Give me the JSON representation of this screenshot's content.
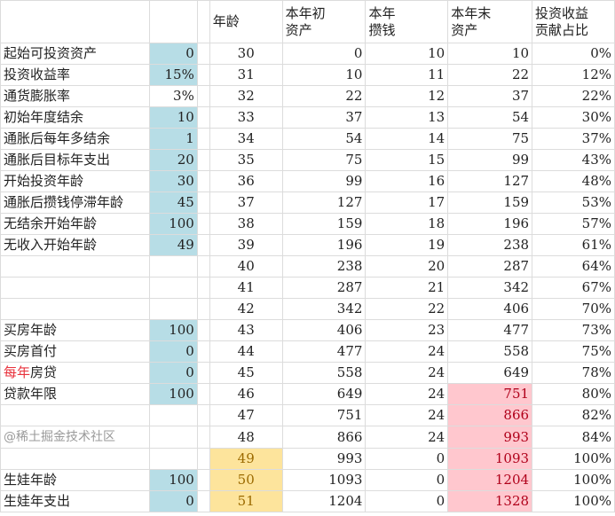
{
  "headers": {
    "age": "年龄",
    "start_assets": [
      "本年初",
      "资产"
    ],
    "savings": [
      "本年",
      "攒钱"
    ],
    "end_assets": [
      "本年末",
      "资产"
    ],
    "return_ratio": [
      "投资收益",
      "贡献占比"
    ]
  },
  "params": [
    {
      "label": "起始可投资资产",
      "value": "0",
      "input": true
    },
    {
      "label": "投资收益率",
      "value": "15%",
      "input": true
    },
    {
      "label": "通货膨胀率",
      "value": "3%",
      "input": false
    },
    {
      "label": "初始年度结余",
      "value": "10",
      "input": true
    },
    {
      "label": "通胀后每年多结余",
      "value": "1",
      "input": true
    },
    {
      "label": "通胀后目标年支出",
      "value": "20",
      "input": true
    },
    {
      "label": "开始投资年龄",
      "value": "30",
      "input": true
    },
    {
      "label": "通胀后攒钱停滞年龄",
      "value": "45",
      "input": true
    },
    {
      "label": "无结余开始年龄",
      "value": "100",
      "input": true
    },
    {
      "label": "无收入开始年龄",
      "value": "49",
      "input": true
    },
    {
      "label": "",
      "value": "",
      "input": false
    },
    {
      "label": "",
      "value": "",
      "input": false
    },
    {
      "label": "",
      "value": "",
      "input": false
    },
    {
      "label": "买房年龄",
      "value": "100",
      "input": true
    },
    {
      "label": "买房首付",
      "value": "0",
      "input": true
    },
    {
      "label": "每年房贷",
      "label_red_part": "每年",
      "label_rest": "房贷",
      "value": "0",
      "input": true
    },
    {
      "label": "贷款年限",
      "value": "100",
      "input": true
    },
    {
      "label": "",
      "value": "",
      "input": false
    },
    {
      "label": "",
      "value": "",
      "input": false
    },
    {
      "label": "",
      "value": "",
      "input": false
    },
    {
      "label": "生娃年龄",
      "value": "100",
      "input": true
    },
    {
      "label": "生娃年支出",
      "value": "0",
      "input": true
    }
  ],
  "rows": [
    {
      "age": "30",
      "start": "0",
      "save": "10",
      "end": "10",
      "ratio": "0%"
    },
    {
      "age": "31",
      "start": "10",
      "save": "11",
      "end": "22",
      "ratio": "12%"
    },
    {
      "age": "32",
      "start": "22",
      "save": "12",
      "end": "37",
      "ratio": "22%"
    },
    {
      "age": "33",
      "start": "37",
      "save": "13",
      "end": "54",
      "ratio": "30%"
    },
    {
      "age": "34",
      "start": "54",
      "save": "14",
      "end": "75",
      "ratio": "37%"
    },
    {
      "age": "35",
      "start": "75",
      "save": "15",
      "end": "99",
      "ratio": "43%"
    },
    {
      "age": "36",
      "start": "99",
      "save": "16",
      "end": "127",
      "ratio": "48%"
    },
    {
      "age": "37",
      "start": "127",
      "save": "17",
      "end": "159",
      "ratio": "53%"
    },
    {
      "age": "38",
      "start": "159",
      "save": "18",
      "end": "196",
      "ratio": "57%"
    },
    {
      "age": "39",
      "start": "196",
      "save": "19",
      "end": "238",
      "ratio": "61%"
    },
    {
      "age": "40",
      "start": "238",
      "save": "20",
      "end": "287",
      "ratio": "64%"
    },
    {
      "age": "41",
      "start": "287",
      "save": "21",
      "end": "342",
      "ratio": "67%"
    },
    {
      "age": "42",
      "start": "342",
      "save": "22",
      "end": "406",
      "ratio": "70%"
    },
    {
      "age": "43",
      "start": "406",
      "save": "23",
      "end": "477",
      "ratio": "73%"
    },
    {
      "age": "44",
      "start": "477",
      "save": "24",
      "end": "558",
      "ratio": "75%"
    },
    {
      "age": "45",
      "start": "558",
      "save": "24",
      "end": "649",
      "ratio": "78%"
    },
    {
      "age": "46",
      "start": "649",
      "save": "24",
      "end": "751",
      "ratio": "80%",
      "end_highlight": true
    },
    {
      "age": "47",
      "start": "751",
      "save": "24",
      "end": "866",
      "ratio": "82%",
      "end_highlight": true
    },
    {
      "age": "48",
      "start": "866",
      "save": "24",
      "end": "993",
      "ratio": "84%",
      "end_highlight": true
    },
    {
      "age": "49",
      "start": "993",
      "save": "0",
      "end": "1093",
      "ratio": "100%",
      "end_highlight": true,
      "age_highlight": true
    },
    {
      "age": "50",
      "start": "1093",
      "save": "0",
      "end": "1204",
      "ratio": "100%",
      "end_highlight": true,
      "age_highlight": true
    },
    {
      "age": "51",
      "start": "1204",
      "save": "0",
      "end": "1328",
      "ratio": "100%",
      "end_highlight": true,
      "age_highlight": true
    }
  ],
  "colors": {
    "input_cell": "#b7dde6",
    "age_highlight": "#fde49c",
    "end_highlight": "#ffc7ce",
    "red_text": "#e8323c"
  },
  "watermark": "@稀土掘金技术社区"
}
